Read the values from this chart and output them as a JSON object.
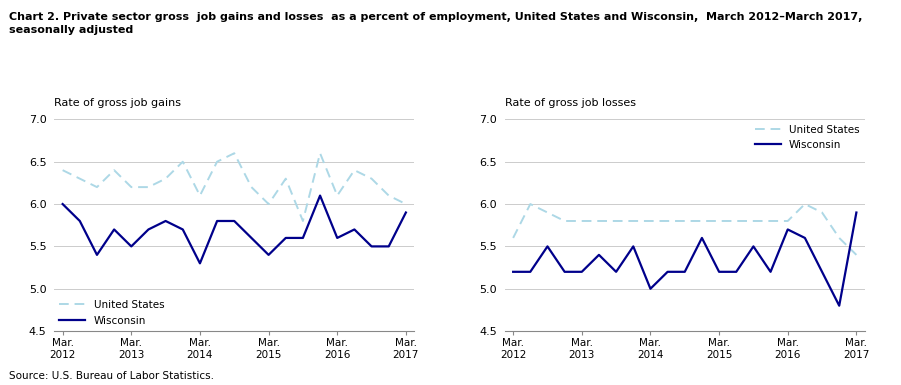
{
  "title_line1": "Chart 2. Private sector gross  job gains and losses  as a percent of employment, United States and Wisconsin,  March 2012–March 2017,",
  "title_line2": "seasonally adjusted",
  "left_ylabel": "Rate of gross job gains",
  "right_ylabel": "Rate of gross job losses",
  "source": "Source: U.S. Bureau of Labor Statistics.",
  "xlabels": [
    "Mar.\n2012",
    "Mar.\n2013",
    "Mar.\n2014",
    "Mar.\n2015",
    "Mar.\n2016",
    "Mar.\n2017"
  ],
  "xtick_pos": [
    0,
    4,
    8,
    12,
    16,
    20
  ],
  "ylim": [
    4.5,
    7.0
  ],
  "yticks": [
    4.5,
    5.0,
    5.5,
    6.0,
    6.5,
    7.0
  ],
  "ytick_labels": [
    "4.5",
    "5.0",
    "5.5",
    "6.0",
    "6.5",
    "7.0"
  ],
  "us_color": "#add8e6",
  "wi_color": "#00008B",
  "gains_us": [
    6.4,
    6.3,
    6.2,
    6.4,
    6.2,
    6.2,
    6.3,
    6.5,
    6.1,
    6.5,
    6.6,
    6.2,
    6.0,
    6.3,
    5.8,
    6.6,
    6.1,
    6.4,
    6.3,
    6.1,
    6.0
  ],
  "gains_wi": [
    6.0,
    5.8,
    5.4,
    5.7,
    5.5,
    5.7,
    5.8,
    5.7,
    5.3,
    5.8,
    5.8,
    5.6,
    5.4,
    5.6,
    5.6,
    6.1,
    5.6,
    5.7,
    5.5,
    5.5,
    5.9
  ],
  "losses_us": [
    5.6,
    6.0,
    5.9,
    5.8,
    5.8,
    5.8,
    5.8,
    5.8,
    5.8,
    5.8,
    5.8,
    5.8,
    5.8,
    5.8,
    5.8,
    5.8,
    5.8,
    6.0,
    5.9,
    5.6,
    5.4
  ],
  "losses_wi": [
    5.2,
    5.2,
    5.5,
    5.2,
    5.2,
    5.4,
    5.2,
    5.5,
    5.0,
    5.2,
    5.2,
    5.6,
    5.2,
    5.2,
    5.5,
    5.2,
    5.7,
    5.6,
    5.2,
    4.8,
    5.9
  ]
}
